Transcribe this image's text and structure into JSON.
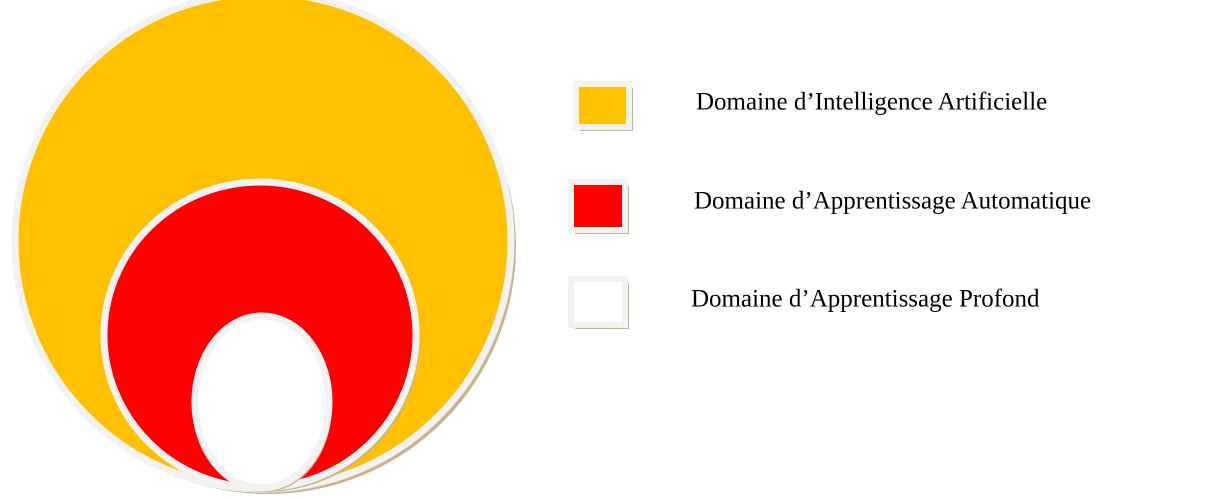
{
  "legend": {
    "items": [
      {
        "label": "Domaine d’Intelligence Artificielle"
      },
      {
        "label": "Domaine d’Apprentissage Automatique"
      },
      {
        "label": "Domaine d’Apprentissage Profond"
      }
    ]
  }
}
